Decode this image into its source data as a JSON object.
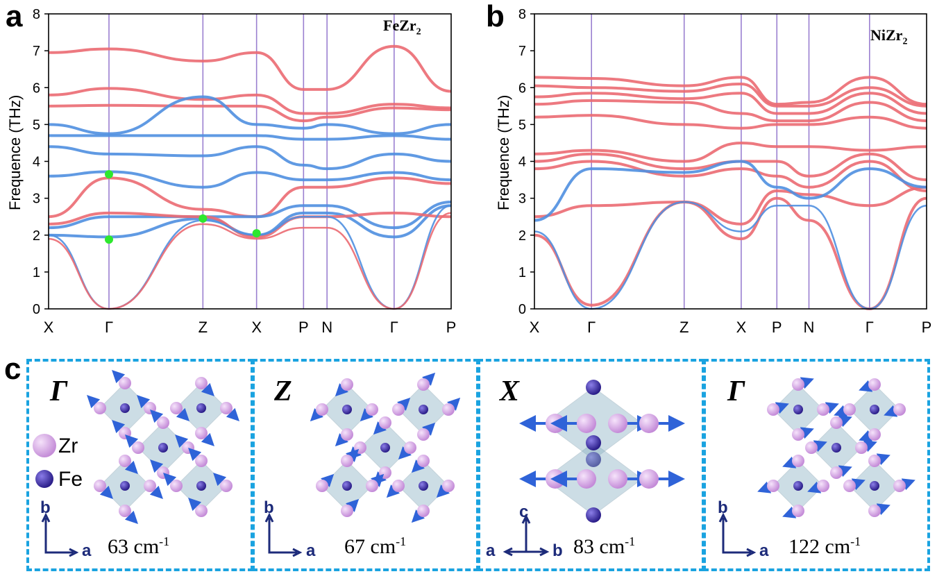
{
  "panels": {
    "a": {
      "letter": "a",
      "compound_base": "FeZr",
      "compound_sub": "2"
    },
    "b": {
      "letter": "b",
      "compound_base": "NiZr",
      "compound_sub": "2"
    },
    "c": {
      "letter": "c"
    }
  },
  "colors": {
    "fe_like": "#4f8fe0",
    "zr_like": "#eb6a72",
    "mixed": "#b39ad6",
    "vline": "#9a7fd0",
    "green": "#2ee82e",
    "box": "#1aa3e0",
    "zr_atom": "#d8a6e6",
    "fe_atom": "#4a3bb5",
    "arrow": "#2f63d8"
  },
  "chart_data": [
    {
      "type": "line",
      "panel": "a",
      "title": "FeZr2",
      "ylabel": "Frequence (THz)",
      "ylim": [
        0,
        8
      ],
      "yticks": [
        "0",
        "1",
        "2",
        "3",
        "4",
        "5",
        "6",
        "7",
        "8"
      ],
      "kpoints": [
        "X",
        "Γ",
        "Z",
        "X",
        "P",
        "N",
        "Γ",
        "P"
      ],
      "kpos": [
        0,
        1.8,
        4.6,
        6.2,
        7.6,
        8.3,
        10.3,
        12.0
      ],
      "series": [
        {
          "name": "b1",
          "color": "red",
          "values": [
            6.95,
            7.05,
            6.72,
            6.95,
            5.95,
            5.95,
            7.12,
            5.9
          ]
        },
        {
          "name": "b2",
          "color": "red",
          "values": [
            5.8,
            5.98,
            5.68,
            5.8,
            5.3,
            5.3,
            5.55,
            5.45
          ]
        },
        {
          "name": "b3",
          "color": "red",
          "values": [
            5.5,
            5.52,
            5.5,
            5.5,
            5.1,
            5.2,
            5.45,
            5.4
          ]
        },
        {
          "name": "b4",
          "color": "blue",
          "values": [
            5.0,
            4.75,
            5.75,
            5.0,
            4.9,
            5.0,
            4.75,
            5.0
          ]
        },
        {
          "name": "b5",
          "color": "blue",
          "values": [
            4.7,
            4.7,
            4.7,
            4.7,
            4.6,
            4.6,
            4.7,
            4.6
          ]
        },
        {
          "name": "b6",
          "color": "blue",
          "values": [
            4.4,
            4.2,
            4.15,
            4.4,
            3.9,
            3.8,
            4.2,
            4.0
          ]
        },
        {
          "name": "b7",
          "color": "blue",
          "values": [
            3.6,
            3.72,
            3.3,
            3.7,
            3.5,
            3.5,
            3.7,
            3.5
          ]
        },
        {
          "name": "b8",
          "color": "red",
          "values": [
            2.5,
            3.55,
            2.7,
            2.5,
            3.3,
            3.3,
            3.55,
            3.4
          ]
        },
        {
          "name": "b9",
          "color": "blue",
          "values": [
            2.2,
            2.5,
            2.5,
            2.5,
            2.8,
            2.8,
            2.2,
            2.9
          ]
        },
        {
          "name": "b10",
          "color": "blue",
          "values": [
            2.0,
            1.95,
            2.45,
            2.0,
            2.6,
            2.6,
            1.95,
            2.8
          ]
        },
        {
          "name": "b11",
          "color": "red",
          "values": [
            2.3,
            2.6,
            2.5,
            1.95,
            2.5,
            2.5,
            2.6,
            2.5
          ]
        },
        {
          "name": "ac1",
          "color": "blue",
          "values": [
            2.0,
            0.0,
            2.4,
            2.0,
            2.5,
            2.5,
            0.0,
            2.8
          ]
        },
        {
          "name": "ac2",
          "color": "red",
          "values": [
            1.9,
            0.0,
            2.3,
            1.9,
            2.2,
            2.2,
            0.0,
            2.6
          ]
        }
      ],
      "markers": [
        {
          "k": 1.8,
          "y": 3.65
        },
        {
          "k": 1.8,
          "y": 1.88
        },
        {
          "k": 4.6,
          "y": 2.45
        },
        {
          "k": 6.2,
          "y": 2.05
        }
      ]
    },
    {
      "type": "line",
      "panel": "b",
      "title": "NiZr2",
      "ylabel": "Frequence (THz)",
      "ylim": [
        0,
        8
      ],
      "yticks": [
        "0",
        "1",
        "2",
        "3",
        "4",
        "5",
        "6",
        "7",
        "8"
      ],
      "kpoints": [
        "X",
        "Γ",
        "Z",
        "X",
        "P",
        "N",
        "Γ",
        "P"
      ],
      "kpos": [
        0,
        1.6,
        4.2,
        5.8,
        6.8,
        7.7,
        9.4,
        11.0
      ],
      "series": [
        {
          "name": "b1",
          "color": "red",
          "values": [
            6.28,
            6.25,
            6.05,
            6.28,
            5.55,
            5.6,
            6.28,
            5.55
          ]
        },
        {
          "name": "b2",
          "color": "red",
          "values": [
            6.05,
            6.0,
            5.9,
            6.1,
            5.5,
            5.5,
            6.0,
            5.5
          ]
        },
        {
          "name": "b3",
          "color": "red",
          "values": [
            5.75,
            5.85,
            5.7,
            5.85,
            5.3,
            5.3,
            5.85,
            5.3
          ]
        },
        {
          "name": "b4",
          "color": "red",
          "values": [
            5.55,
            5.65,
            5.6,
            5.3,
            5.1,
            5.1,
            5.6,
            5.1
          ]
        },
        {
          "name": "b5",
          "color": "red",
          "values": [
            5.2,
            5.25,
            5.0,
            4.9,
            5.0,
            5.0,
            5.2,
            4.9
          ]
        },
        {
          "name": "b6",
          "color": "red",
          "values": [
            4.2,
            4.3,
            4.0,
            4.5,
            4.4,
            4.4,
            4.3,
            4.4
          ]
        },
        {
          "name": "b7",
          "color": "red",
          "values": [
            4.0,
            4.2,
            3.8,
            4.0,
            4.0,
            3.6,
            4.2,
            3.5
          ]
        },
        {
          "name": "b8",
          "color": "red",
          "values": [
            3.8,
            4.0,
            3.6,
            3.8,
            3.6,
            3.3,
            4.0,
            3.2
          ]
        },
        {
          "name": "b9",
          "color": "red",
          "values": [
            2.5,
            2.8,
            2.9,
            2.3,
            3.2,
            3.1,
            2.8,
            3.3
          ]
        },
        {
          "name": "b10",
          "color": "red",
          "values": [
            2.0,
            0.1,
            2.9,
            1.9,
            3.0,
            2.4,
            0.0,
            3.0
          ]
        },
        {
          "name": "b11",
          "color": "blue",
          "values": [
            2.4,
            3.8,
            3.7,
            4.0,
            3.3,
            3.0,
            3.8,
            3.3
          ]
        },
        {
          "name": "ac1",
          "color": "blue",
          "values": [
            2.1,
            0.0,
            2.9,
            2.1,
            2.8,
            2.8,
            0.0,
            2.8
          ]
        }
      ],
      "markers": []
    }
  ],
  "modes": [
    {
      "label": "Γ",
      "freq_value": "63 cm",
      "freq_exp": "-1",
      "axes": [
        "b",
        "a"
      ]
    },
    {
      "label": "Z",
      "freq_value": "67 cm",
      "freq_exp": "-1",
      "axes": [
        "b",
        "a"
      ]
    },
    {
      "label": "X",
      "freq_value": "83 cm",
      "freq_exp": "-1",
      "axes": [
        "c",
        "a",
        "b"
      ]
    },
    {
      "label": "Γ",
      "freq_value": "122 cm",
      "freq_exp": "-1",
      "axes": [
        "b",
        "a"
      ]
    }
  ],
  "legend": {
    "zr": "Zr",
    "fe": "Fe"
  }
}
